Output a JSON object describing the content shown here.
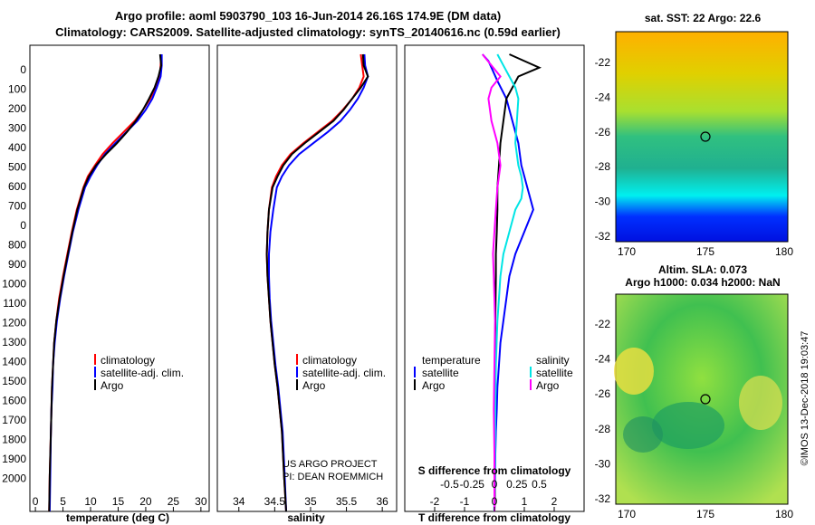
{
  "header": {
    "line1": "Argo profile: aoml 5903790_103 16-Jun-2014 26.16S 174.9E (DM data)",
    "line2": "Climatology: CARS2009. Satellite-adjusted climatology: synTS_20140616.nc (0.59d earlier)"
  },
  "colors": {
    "climatology": "#ff0000",
    "satellite": "#0000ff",
    "argo": "#000000",
    "sat_salinity": "#00e5e5",
    "salinity_argo": "#ff00ff"
  },
  "depth_ticks": [
    "0",
    "100",
    "200",
    "300",
    "400",
    "500",
    "600",
    "700",
    "0",
    "800",
    "900",
    "1000",
    "1100",
    "1200",
    "1300",
    "1400",
    "1500",
    "1600",
    "1700",
    "1800",
    "1900",
    "2000"
  ],
  "legend": {
    "climatology": "climatology",
    "satellite_adj": "satellite-adj. clim.",
    "argo": "Argo",
    "temperature": "temperature",
    "salinity": "salinity",
    "satellite": "satellite"
  },
  "credits": {
    "line1": "US ARGO PROJECT",
    "line2": "PI: DEAN ROEMMICH"
  },
  "side_panels": {
    "sst_title": "sat. SST: 22 Argo: 22.6",
    "sla_title1": "Altim. SLA: 0.073",
    "sla_title2": "Argo h1000: 0.034 h2000: NaN",
    "lat_ticks": [
      "-22",
      "-24",
      "-26",
      "-28",
      "-30",
      "-32"
    ],
    "lon_ticks": [
      "170",
      "175",
      "180"
    ],
    "stamp": "©IMOS 13-Dec-2018 19:03:47"
  },
  "chart_data": [
    {
      "type": "line",
      "xlabel": "temperature (deg C)",
      "ylabel": "",
      "xlim": [
        -1,
        31.5
      ],
      "ylim": [
        2060,
        0
      ],
      "xticks": [
        "0",
        "5",
        "10",
        "15",
        "20",
        "25",
        "30"
      ],
      "series": [
        {
          "name": "climatology",
          "x": [
            22.8,
            22.7,
            22.5,
            21.8,
            20.8,
            19.5,
            18.0,
            16.0,
            14.0,
            12.2,
            10.8,
            9.5,
            8.7,
            7.5,
            6.6,
            5.8,
            5.0,
            4.3,
            3.8,
            3.4,
            3.2,
            3.0,
            2.9,
            2.8,
            2.6,
            2.5
          ],
          "y": [
            0,
            50,
            100,
            150,
            200,
            250,
            300,
            350,
            400,
            450,
            500,
            550,
            600,
            700,
            800,
            900,
            1000,
            1100,
            1200,
            1300,
            1400,
            1500,
            1600,
            1700,
            1900,
            2060
          ]
        },
        {
          "name": "satellite-adj. clim.",
          "x": [
            22.9,
            22.9,
            22.7,
            22.0,
            21.2,
            20.0,
            18.5,
            16.5,
            14.5,
            12.6,
            11.2,
            10.0,
            9.0,
            7.8,
            6.8,
            6.0,
            5.2,
            4.5,
            3.9,
            3.5,
            3.2,
            3.1,
            2.9,
            2.8,
            2.7,
            2.6
          ],
          "y": [
            0,
            50,
            100,
            150,
            200,
            250,
            300,
            350,
            400,
            450,
            500,
            550,
            600,
            700,
            800,
            900,
            1000,
            1100,
            1200,
            1300,
            1400,
            1500,
            1600,
            1700,
            1900,
            2060
          ]
        },
        {
          "name": "Argo",
          "x": [
            22.6,
            22.8,
            22.3,
            21.6,
            20.6,
            19.5,
            18.2,
            16.6,
            14.8,
            12.8,
            11.0,
            9.7,
            8.8,
            7.6,
            6.7,
            5.9,
            5.1,
            4.4,
            3.8,
            3.4,
            3.2,
            3.0,
            2.9,
            2.8,
            2.6,
            2.5
          ],
          "y": [
            0,
            50,
            100,
            150,
            200,
            250,
            300,
            350,
            400,
            450,
            500,
            550,
            600,
            700,
            800,
            900,
            1000,
            1100,
            1200,
            1300,
            1400,
            1500,
            1600,
            1700,
            1900,
            2060
          ]
        }
      ]
    },
    {
      "type": "line",
      "xlabel": "salinity",
      "ylabel": "",
      "xlim": [
        33.7,
        36.2
      ],
      "ylim": [
        2060,
        0
      ],
      "xticks": [
        "34",
        "34.5",
        "35",
        "35.5",
        "36"
      ],
      "series": [
        {
          "name": "climatology",
          "x": [
            35.7,
            35.72,
            35.74,
            35.68,
            35.58,
            35.45,
            35.3,
            35.1,
            34.9,
            34.72,
            34.6,
            34.52,
            34.46,
            34.42,
            34.4,
            34.39,
            34.4,
            34.42,
            34.44,
            34.47,
            34.5,
            34.54,
            34.57,
            34.6,
            34.63,
            34.66
          ],
          "y": [
            0,
            50,
            100,
            150,
            200,
            250,
            300,
            350,
            400,
            450,
            500,
            550,
            600,
            700,
            800,
            900,
            1000,
            1100,
            1200,
            1300,
            1400,
            1500,
            1600,
            1700,
            1900,
            2060
          ]
        },
        {
          "name": "satellite-adj. clim.",
          "x": [
            35.75,
            35.76,
            35.8,
            35.74,
            35.66,
            35.55,
            35.42,
            35.24,
            35.04,
            34.84,
            34.7,
            34.6,
            34.53,
            34.48,
            34.44,
            34.42,
            34.42,
            34.43,
            34.45,
            34.48,
            34.51,
            34.55,
            34.58,
            34.61,
            34.64,
            34.66
          ],
          "y": [
            0,
            50,
            100,
            150,
            200,
            250,
            300,
            350,
            400,
            450,
            500,
            550,
            600,
            700,
            800,
            900,
            1000,
            1100,
            1200,
            1300,
            1400,
            1500,
            1600,
            1700,
            1900,
            2060
          ]
        },
        {
          "name": "Argo",
          "x": [
            35.73,
            35.74,
            35.8,
            35.7,
            35.58,
            35.46,
            35.32,
            35.12,
            34.92,
            34.74,
            34.62,
            34.54,
            34.47,
            34.42,
            34.4,
            34.39,
            34.4,
            34.42,
            34.44,
            34.47,
            34.5,
            34.54,
            34.57,
            34.6,
            34.63,
            34.66
          ],
          "y": [
            0,
            50,
            100,
            150,
            200,
            250,
            300,
            350,
            400,
            450,
            500,
            550,
            600,
            700,
            800,
            900,
            1000,
            1100,
            1200,
            1300,
            1400,
            1500,
            1600,
            1700,
            1900,
            2060
          ]
        }
      ]
    },
    {
      "type": "line",
      "xlabel": "T difference from climatology",
      "ylabel": "",
      "title_inside": "S difference from climatology",
      "xlim": [
        -3,
        3
      ],
      "ylim": [
        2060,
        0
      ],
      "xticks": [
        "-2",
        "-1",
        "0",
        "1",
        "2"
      ],
      "xticks_s": [
        "-0.5",
        "-0.25",
        "0",
        "0.25",
        "0.5"
      ],
      "series": [
        {
          "name": "temperature satellite",
          "x": [
            -0.4,
            -0.2,
            -0.1,
            0.1,
            0.4,
            0.6,
            0.8,
            0.9,
            1.0,
            1.1,
            1.2,
            1.3,
            1.0,
            0.7,
            0.5,
            0.4,
            0.3,
            0.2,
            0.15,
            0.1,
            0.08,
            0.05,
            0.03,
            0.02,
            0.01,
            0.0
          ],
          "y": [
            0,
            30,
            60,
            120,
            200,
            300,
            400,
            500,
            550,
            600,
            650,
            700,
            800,
            900,
            1000,
            1100,
            1200,
            1300,
            1400,
            1500,
            1600,
            1700,
            1800,
            1900,
            2000,
            2060
          ]
        },
        {
          "name": "temperature Argo",
          "x": [
            0.5,
            1.0,
            1.5,
            0.8,
            0.6,
            0.4,
            0.3,
            0.2,
            0.15,
            0.1,
            0.1,
            0.08,
            0.05,
            0.05,
            0.04,
            0.03,
            0.02,
            0.02,
            0.01,
            0.01,
            0.0
          ],
          "y": [
            0,
            30,
            60,
            100,
            150,
            200,
            300,
            400,
            500,
            600,
            700,
            800,
            900,
            1000,
            1100,
            1200,
            1400,
            1600,
            1800,
            2000,
            2060
          ]
        },
        {
          "name": "salinity satellite",
          "x": [
            0.1,
            0.3,
            0.5,
            0.7,
            0.8,
            0.75,
            0.7,
            0.8,
            0.9,
            0.95,
            0.9,
            0.7,
            0.5,
            0.3,
            0.2,
            0.15,
            0.1,
            0.05,
            0.03,
            0.02,
            0.0,
            -0.01
          ],
          "y": [
            0,
            50,
            100,
            150,
            200,
            300,
            400,
            500,
            550,
            600,
            650,
            700,
            800,
            900,
            1000,
            1100,
            1200,
            1400,
            1600,
            1800,
            2000,
            2060
          ]
        },
        {
          "name": "salinity Argo",
          "x": [
            -0.4,
            -0.1,
            0.2,
            -0.1,
            -0.2,
            -0.1,
            0.1,
            0.2,
            0.1,
            0.05,
            0.0,
            -0.05,
            -0.02,
            0.0,
            0.02,
            0.0,
            -0.02,
            0.0,
            0.0,
            0.0
          ],
          "y": [
            0,
            50,
            100,
            150,
            200,
            300,
            400,
            500,
            600,
            700,
            800,
            900,
            1000,
            1100,
            1200,
            1400,
            1600,
            1800,
            2000,
            2060
          ]
        }
      ]
    }
  ]
}
